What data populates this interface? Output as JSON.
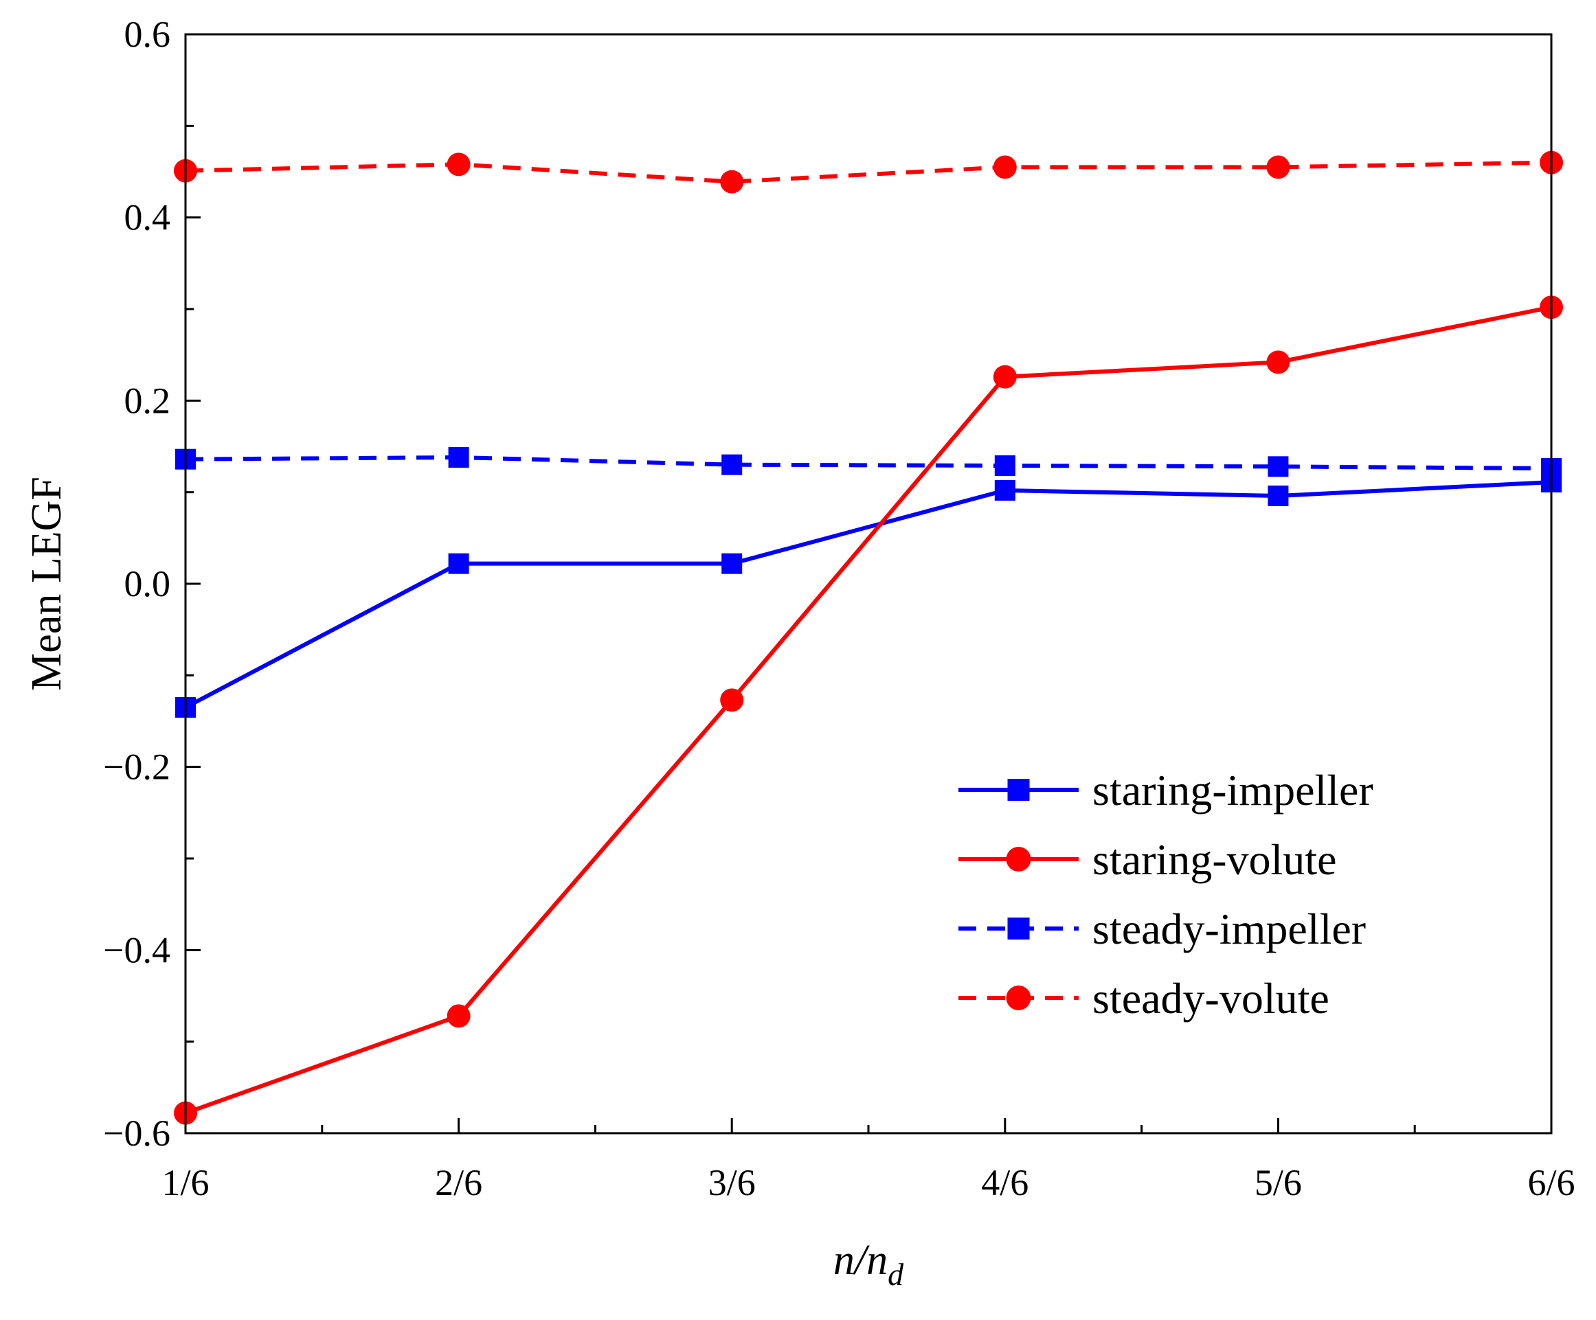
{
  "chart_data": {
    "type": "line",
    "title": "",
    "xlabel": "n/n_d",
    "xlabel_parts": {
      "main": "n/n",
      "sub": "d"
    },
    "ylabel": "Mean LEGF",
    "categories": [
      "1/6",
      "2/6",
      "3/6",
      "4/6",
      "5/6",
      "6/6"
    ],
    "ylim": [
      -0.6,
      0.6
    ],
    "yticks": [
      {
        "value": -0.6,
        "label": "−0.6"
      },
      {
        "value": -0.4,
        "label": "−0.4"
      },
      {
        "value": -0.2,
        "label": "−0.2"
      },
      {
        "value": 0.0,
        "label": "0.0"
      },
      {
        "value": 0.2,
        "label": "0.2"
      },
      {
        "value": 0.4,
        "label": "0.4"
      },
      {
        "value": 0.6,
        "label": "0.6"
      }
    ],
    "grid": false,
    "legend_position": "bottom-right",
    "series": [
      {
        "name": "staring-impeller",
        "color": "#0000ff",
        "dashed": false,
        "marker": "square",
        "values": [
          -0.135,
          0.022,
          0.022,
          0.102,
          0.096,
          0.111
        ]
      },
      {
        "name": "staring-volute",
        "color": "#ff0000",
        "dashed": false,
        "marker": "circle",
        "values": [
          -0.578,
          -0.472,
          -0.127,
          0.226,
          0.242,
          0.302
        ]
      },
      {
        "name": "steady-impeller",
        "color": "#0000ff",
        "dashed": true,
        "marker": "square",
        "values": [
          0.136,
          0.138,
          0.13,
          0.129,
          0.128,
          0.126
        ]
      },
      {
        "name": "steady-volute",
        "color": "#ff0000",
        "dashed": true,
        "marker": "circle",
        "values": [
          0.451,
          0.458,
          0.439,
          0.455,
          0.455,
          0.46
        ]
      }
    ]
  }
}
